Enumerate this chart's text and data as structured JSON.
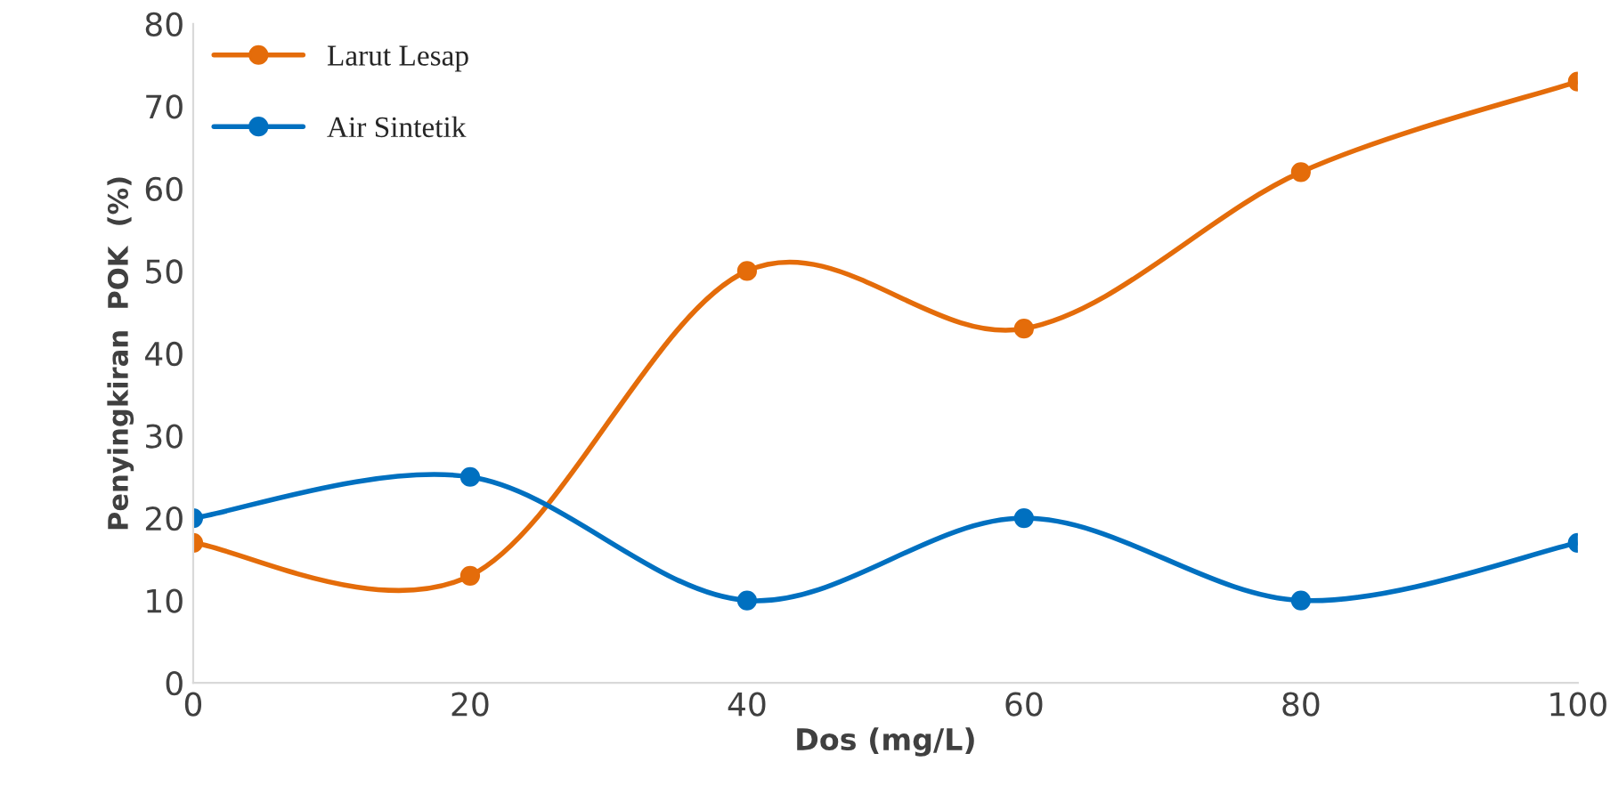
{
  "chart_data": {
    "type": "line",
    "xlabel": "Dos (mg/L)",
    "ylabel": "Penyingkiran  POK  (%)",
    "x": [
      0,
      20,
      40,
      60,
      80,
      100
    ],
    "series": [
      {
        "name": "Larut Lesap",
        "color": "#e46c0a",
        "values": [
          17,
          13,
          50,
          43,
          62,
          73
        ]
      },
      {
        "name": "Air Sintetik",
        "color": "#0070c0",
        "values": [
          20,
          25,
          10,
          20,
          10,
          17
        ]
      }
    ],
    "xlim": [
      0,
      100
    ],
    "xticks": [
      0,
      20,
      40,
      60,
      80,
      100
    ],
    "ylim": [
      0,
      80
    ],
    "yticks": [
      0,
      10,
      20,
      30,
      40,
      50,
      60,
      70,
      80
    ],
    "grid": false,
    "legend": "top left",
    "marker": "circle",
    "line_style": "solid"
  }
}
